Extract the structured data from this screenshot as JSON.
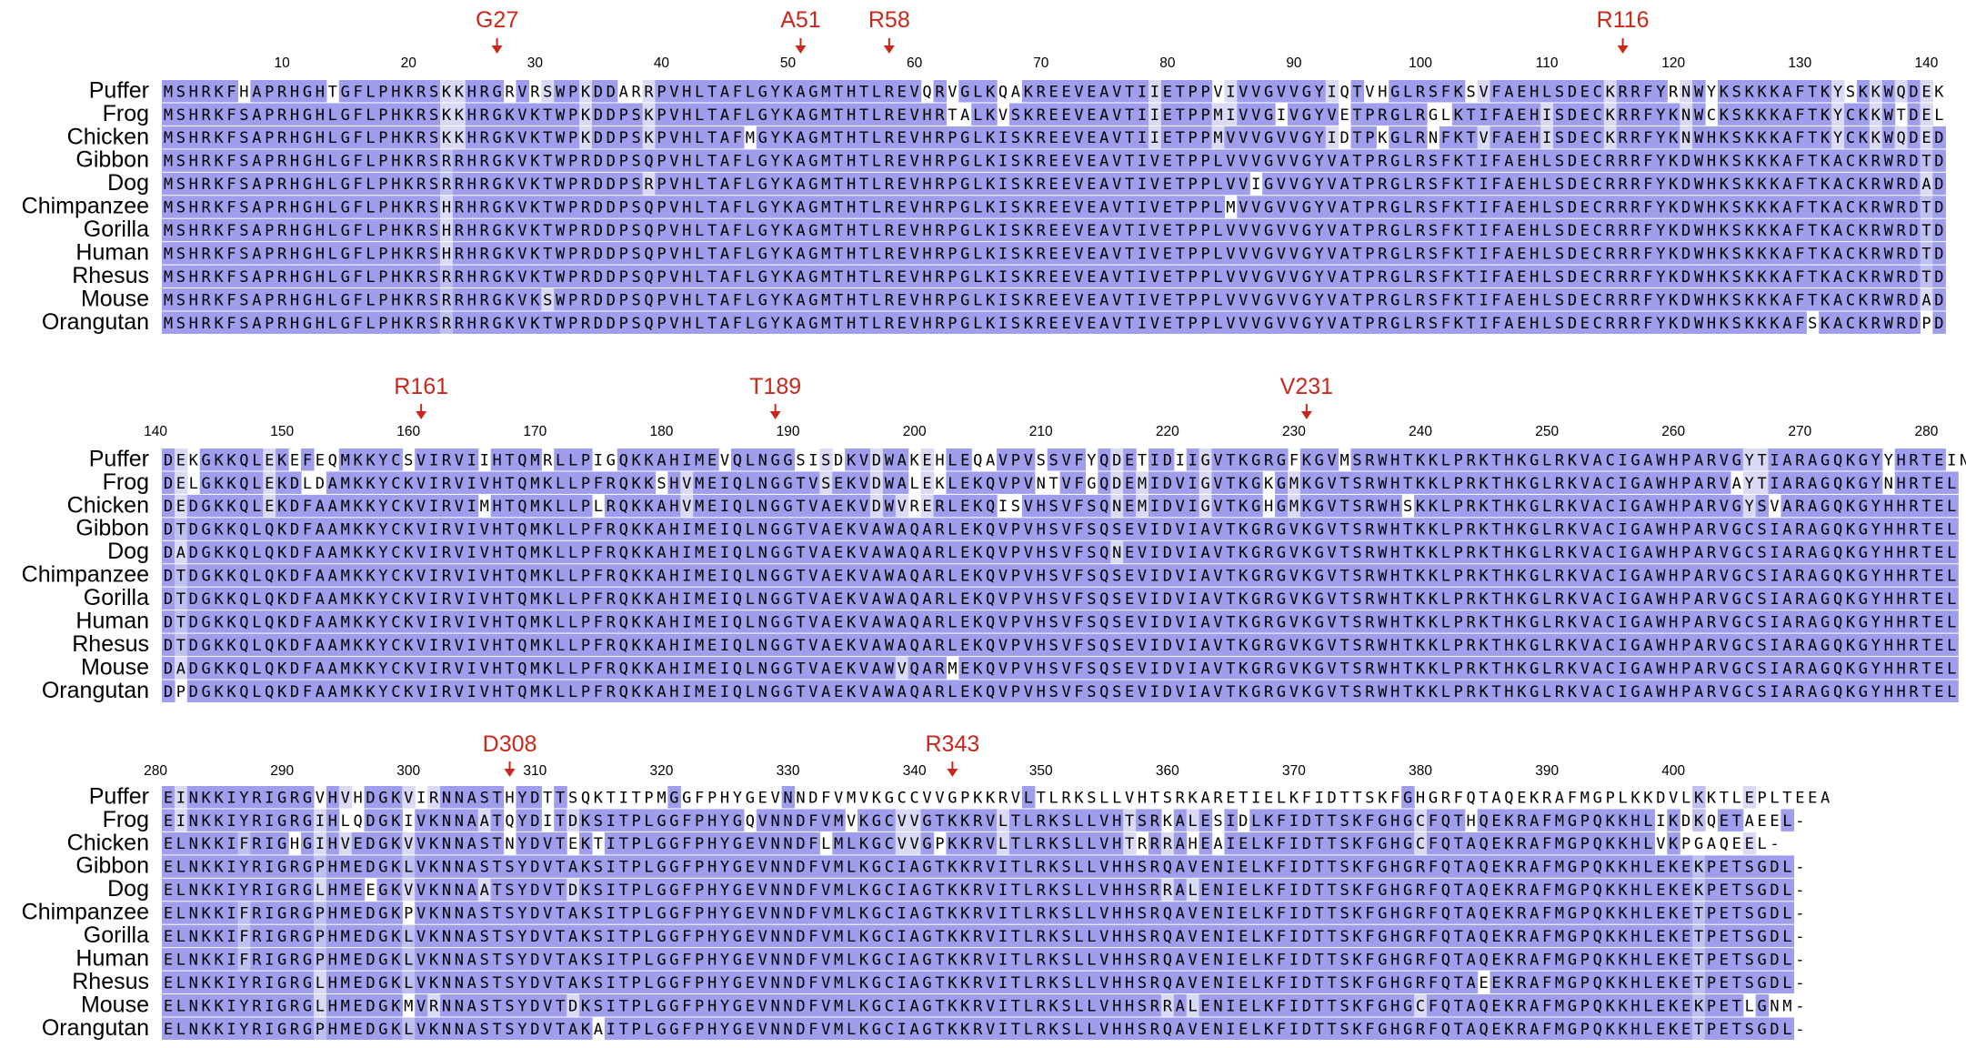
{
  "colors": {
    "high_conservation": "#9e9eec",
    "medium_conservation": "#c0c0f0",
    "low_conservation": "#dadaf4",
    "no_conservation": "#ffffff",
    "mutation_marker": "#c8281c",
    "text": "#000000"
  },
  "species": [
    "Puffer",
    "Frog",
    "Chicken",
    "Gibbon",
    "Dog",
    "Chimpanzee",
    "Gorilla",
    "Human",
    "Rhesus",
    "Mouse",
    "Orangutan"
  ],
  "blocks": [
    {
      "start": 1,
      "ruler": [
        "10",
        "20",
        "30",
        "40",
        "50",
        "60",
        "70",
        "80",
        "90",
        "100",
        "110",
        "120",
        "130",
        "140"
      ],
      "markers": [
        {
          "label": "G27",
          "pos": 27
        },
        {
          "label": "A51",
          "pos": 51
        },
        {
          "label": "R58",
          "pos": 58
        },
        {
          "label": "R116",
          "pos": 116
        }
      ],
      "sequences": [
        "MSHRKFHAPRHGHTGFLPHKRSKKHRGRVRSWPKDDARRPVHLTAFLGYKAGMTHTLREVQRVGLKQAKREEVEAVTIIETPPVIVVGVVGYIQTVHGLRSFKSVFAEHLSDECKRRFYRNWYKSKKKAFTKYSKKWQDEK",
        "MSHRKFSAPRHGHLGFLPHKRSKKHRGKVKTWPKDDPSKPVHLTAFLGYKAGMTHTLREVHRTALKVSKREEVEAVTIIETPPMIVVGIVGYVETPRGLRGLKTIFAEHISDECKRRFYKNWCKSKKKAFTKYCKKWTDEL",
        "MSHRKFSAPRHGHLGFLPHKRSKKHRGKVKTWPKDDPSKPVHLTAFMGYKAGMTHTLREVHRPGLKISKREEVEAVTIIETPPMVVVGVVGYIDTPKGLRNFKTVFAEHISDECKRRFYKNWHKSKKKAFTKYCKKWQDED",
        "MSHRKFSAPRHGHLGFLPHKRSRRHRGKVKTWPRDDPSQPVHLTAFLGYKAGMTHTLREVHRPGLKISKREEVEAVTIVETPPLVVVGVVGYVATPRGLRSFKTIFAEHLSDECRRRFYKDWHKSKKKAFTKACKRWRDTD",
        "MSHRKFSAPRHGHLGFLPHKRSRRHRGKVKTWPRDDPSRPVHLTAFLGYKAGMTHTLREVHRPGLKISKREEVEAVTIVETPPLVVIGVVGYVATPRGLRSFKTIFAEHLSDECRRRFYKDWHKSKKKAFTKACKRWRDAD",
        "MSHRKFSAPRHGHLGFLPHKRSHRHRGKVKTWPRDDPSQPVHLTAFLGYKAGMTHTLREVHRPGLKISKREEVEAVTIVETPPLMVVGVVGYVATPRGLRSFKTIFAEHLSDECRRRFYKDWHKSKKKAFTKACKRWRDTD",
        "MSHRKFSAPRHGHLGFLPHKRSHRHRGKVKTWPRDDPSQPVHLTAFLGYKAGMTHTLREVHRPGLKISKREEVEAVTIVETPPLVVVGVVGYVATPRGLRSFKTIFAEHLSDECRRRFYKDWHKSKKKAFTKACKRWRDTD",
        "MSHRKFSAPRHGHLGFLPHKRSHRHRGKVKTWPRDDPSQPVHLTAFLGYKAGMTHTLREVHRPGLKISKREEVEAVTIVETPPLVVVGVVGYVATPRGLRSFKTIFAEHLSDECRRRFYKDWHKSKKKAFTKACKRWRDTD",
        "MSHRKFSAPRHGHLGFLPHKRSRRHRGKVKTWPRDDPSQPVHLTAFLGYKAGMTHTLREVHRPGLKISKREEVEAVTIVETPPLVVVGVVGYVATPRGLRSFKTIFAEHLSDECRRRFYKDWHKSKKKAFTKACKRWRDTD",
        "MSHRKFSAPRHGHLGFLPHKRSRRHRGKVKSWPRDDPSQPVHLTAFLGYKAGMTHTLREVHRPGLKISKREEVEAVTIVETPPLVVVGVVGYVATPRGLRSFKTIFAEHLSDECRRRFYKDWHKSKKKAFTKACKRWRDAD",
        "MSHRKFSAPRHGHLGFLPHKRSRRHRGKVKTWPRDDPSQPVHLTAFLGYKAGMTHTLREVHRPGLKISKREEVEAVTIVETPPLVVVGVVGYVATPRGLRSFKTIFAEHLSDECRRRFYKDWHKSKKKAFSKACKRWRDPD"
      ]
    },
    {
      "start": 141,
      "ruler": [
        "140",
        "150",
        "160",
        "170",
        "180",
        "190",
        "200",
        "210",
        "220",
        "230",
        "240",
        "250",
        "260",
        "270",
        "280"
      ],
      "markers": [
        {
          "label": "R161",
          "pos": 161
        },
        {
          "label": "T189",
          "pos": 189
        },
        {
          "label": "V231",
          "pos": 231
        }
      ],
      "sequences": [
        "DEKGKKQLEKEFEQMKKYCSVIRVIIHTQMRLLPIGQKKAHIMEVQLNGGSISDKVDWAKEHLEQAVPVSSVFYQDETIDIIGVTKGRGFKGVMSRWHTKKLPRKTHKGLRKVACIGAWHPARVGYTIARAGQKGYYHRTEIN",
        "DELGKKQLEKDLDAMKKYCKVIRVIVHTQMKLLPFRQKKSHVMEIQLNGGTVSEKVDWALEKLEKQVPVNTVFGQDEMIDVIGVTKGKGMKGVTSRWHTKKLPRKTHKGLRKVACIGAWHPARVAYTIARAGQKGYNHRTEL",
        "DEDGKKQLEKDFAAMKKYCKVIRVIMHTQMKLLPLRQKKAHVMEIQLNGGTVAEKVDWVRERLEKQISVHSVFSQNEMIDVIGVTKGHGMKGVTSRWHSKKLPRKTHKGLRKVACIGAWHPARVGYSVARAGQKGYHHRTEL",
        "DTDGKKQLQKDFAAMKKYCKVIRVIVHTQMKLLPFRQKKAHIMEIQLNGGTVAEKVAWAQARLEKQVPVHSVFSQSEVIDVIAVTKGRGVKGVTSRWHTKKLPRKTHKGLRKVACIGAWHPARVGCSIARAGQKGYHHRTEL",
        "DADGKKQLQKDFAAMKKYCKVIRVIVHTQMKLLPFRQKKAHIMEIQLNGGTVAEKVAWAQARLEKQVPVHSVFSQNEVIDVIAVTKGRGVKGVTSRWHTKKLPRKTHKGLRKVACIGAWHPARVGCSIARAGQKGYHHRTEL",
        "DTDGKKQLQKDFAAMKKYCKVIRVIVHTQMKLLPFRQKKAHIMEIQLNGGTVAEKVAWAQARLEKQVPVHSVFSQSEVIDVIAVTKGRGVKGVTSRWHTKKLPRKTHKGLRKVACIGAWHPARVGCSIARAGQKGYHHRTEL",
        "DTDGKKQLQKDFAAMKKYCKVIRVIVHTQMKLLPFRQKKAHIMEIQLNGGTVAEKVAWAQARLEKQVPVHSVFSQSEVIDVIAVTKGRGVKGVTSRWHTKKLPRKTHKGLRKVACIGAWHPARVGCSIARAGQKGYHHRTEL",
        "DTDGKKQLQKDFAAMKKYCKVIRVIVHTQMKLLPFRQKKAHIMEIQLNGGTVAEKVAWAQARLEKQVPVHSVFSQSEVIDVIAVTKGRGVKGVTSRWHTKKLPRKTHKGLRKVACIGAWHPARVGCSIARAGQKGYHHRTEL",
        "DTDGKKQLQKDFAAMKKYCKVIRVIVHTQMKLLPFRQKKAHIMEIQLNGGTVAEKVAWAQARLEKQVPVHSVFSQSEVIDVIAVTKGRGVKGVTSRWHTKKLPRKTHKGLRKVACIGAWHPARVGCSIARAGQKGYHHRTEL",
        "DADGKKQLQKDFAAMKKYCKVIRVIVHTQMKLLPFRQKKAHIMEIQLNGGTVAEKVAWVQARMEKQVPVHSVFSQSEVIDVIAVTKGRGVKGVTSRWHTKKLPRKTHKGLRKVACIGAWHPARVGCSIARAGQKGYHHRTEL",
        "DPDGKKQLQKDFAAMKKYCKVIRVIVHTQMKLLPFRQKKAHIMEIQLNGGTVAEKVAWAQARLEKQVPVHSVFSQSEVIDVIAVTKGRGVKGVTSRWHTKKLPRKTHKGLRKVACIGAWHPARVGCSIARAGQKGYHHRTEL"
      ]
    },
    {
      "start": 281,
      "ruler": [
        "280",
        "290",
        "300",
        "310",
        "320",
        "330",
        "340",
        "350",
        "360",
        "370",
        "380",
        "390",
        "400"
      ],
      "markers": [
        {
          "label": "D308",
          "pos": 308
        },
        {
          "label": "R343",
          "pos": 343
        }
      ],
      "sequences": [
        "EINKKIYRIGRGVHVHDGKVIRNNASTHYDTTSQKTITPMGGFPHYGEVNNDFVMVKGCCVVGPKKRVLTLRKSLLVHTSRKARETIELKFIDTTSKFGHGRFQTAQEKRAFMGPLKKDVLKKTLEPLTEEA",
        "EINKKIYRIGRGIHLQDGKIVKNNAATQYDITDKSITPLGGFPHYGQVNNDFVMVKGCVVGTKKRVLTLRKSLLVHTSRKALESIDLKFIDTTSKFGHGCFQTHQEKRAFMGPQKKHLIKDKQETAEEL-",
        "ELNKKIFRIGHGIHVEDGKVVKNNASTNYDVTEKTITPLGGFPHYGEVNNDFLMLKGCVVGPKKRVLTLRKSLLVHTRRRAHEAIELKFIDTTSKFGHGCFQTAQEKRAFMGPQKKHLVKPGAQEEL-",
        "ELNKKIYRIGRGPHMEDGKLVKNNASTSYDVTAKSITPLGGFPHYGEVNNDFVMLKGCIAGTKKRVITLRKSLLVHHSRQAVENIELKFIDTTSKFGHGRFQTAQEKRAFMGPQKKHLEKEKPETSGDL-",
        "ELNKKIYRIGRGLHMEEGKVVKNNAATSYDVTDKSITPLGGFPHYGEVNNDFVMLKGCIAGTKKRVITLRKSLLVHHSRRALENIELKFIDTTSKFGHGRFQTAQEKRAFMGPQKKHLEKEKPETSGDL-",
        "ELNKKIFRIGRGPHMEDGKPVKNNASTSYDVTAKSITPLGGFPHYGEVNNDFVMLKGCIAGTKKRVITLRKSLLVHHSRQAVENIELKFIDTTSKFGHGRFQTAQEKRAFMGPQKKHLEKETPETSGDL-",
        "ELNKKIFRIGRGPHMEDGKLVKNNASTSYDVTAKSITPLGGFPHYGEVNNDFVMLKGCIAGTKKRVITLRKSLLVHHSRQAVENIELKFIDTTSKFGHGRFQTAQEKRAFMGPQKKHLEKETPETSGDL-",
        "ELNKKIFRIGRGPHMEDGKLVKNNASTSYDVTAKSITPLGGFPHYGEVNNDFVMLKGCIAGTKKRVITLRKSLLVHHSRQAVENIELKFIDTTSKFGHGRFQTAQEKRAFMGPQKKHLEKETPETSGDL-",
        "ELNKKIYRIGRGLHMEDGKLVKNNASTSYDVTAKSITPLGGFPHYGEVNNDFVMLKGCIAGTKKRVITLRKSLLVHHSRQAVENIELKFIDTTSKFGHGRFQTAEEKRAFMGPQKKHLEKETPETSGDL-",
        "ELNKKIYRIGRGLHMEDGKMVRNNASTSYDVTDKSITPLGGFPHYGEVNNDFVMLKGCIAGTKKRVITLRKSLLVHHSRRALENIELKFIDTTSKFGHGCFQTAQEKRAFMGPQKKHLEKEKPETLGNM-",
        "ELNKKIYRIGRGPHMEDGKLVKNNASTSYDVTAKAITPLGGFPHYGEVNNDFVMLKGCIAGTKKRVITLRKSLLVHHSRQAVENIELKFIDTTSKFGHGRFQTAQEKRAFMGPQKKHLEKETPETSGDL-"
      ]
    }
  ]
}
